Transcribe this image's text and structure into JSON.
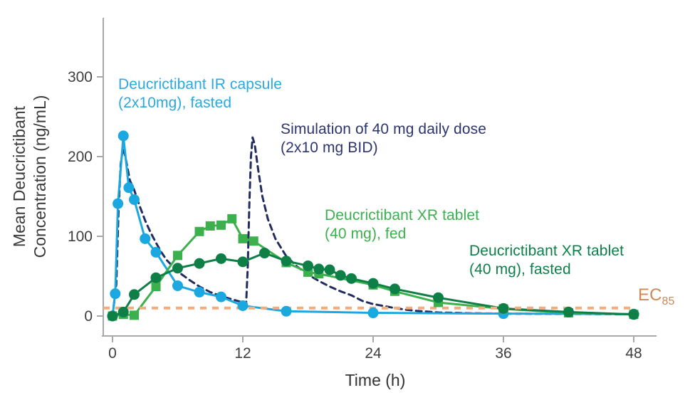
{
  "chart_data": {
    "type": "line",
    "title": "",
    "xlabel": "Time (h)",
    "ylabel_line1": "Mean Deucrictibant",
    "ylabel_line2": "Concentration (ng/mL)",
    "xlim": [
      0,
      48
    ],
    "ylim": [
      0,
      375
    ],
    "x_ticks": [
      0,
      12,
      24,
      36,
      48
    ],
    "y_ticks": [
      0,
      100,
      200,
      300
    ],
    "grid": false,
    "legend_position": "inline-annotations",
    "axis_color": "#a8a8a8",
    "tick_label_color": "#3f3f3f",
    "reference_line": {
      "name": "EC85 threshold",
      "label_base": "EC",
      "label_sub": "85",
      "value": 10,
      "color": "#f3ac7e",
      "style": "dashed"
    },
    "series": [
      {
        "id": "simulation",
        "name": "Simulation of 40 mg daily dose (2x10 mg BID)",
        "color": "#222c5e",
        "line": "dashed",
        "marker": "none",
        "points": [
          [
            0,
            0
          ],
          [
            0.35,
            40
          ],
          [
            0.55,
            130
          ],
          [
            0.75,
            190
          ],
          [
            0.95,
            210
          ],
          [
            1.15,
            202
          ],
          [
            1.35,
            188
          ],
          [
            1.6,
            170
          ],
          [
            2,
            158
          ],
          [
            2.5,
            138
          ],
          [
            3,
            120
          ],
          [
            3.5,
            105
          ],
          [
            4,
            92
          ],
          [
            4.5,
            80
          ],
          [
            5,
            70
          ],
          [
            6,
            56
          ],
          [
            7,
            46
          ],
          [
            8,
            37
          ],
          [
            9,
            30
          ],
          [
            10,
            25
          ],
          [
            11,
            21
          ],
          [
            12,
            17
          ],
          [
            12.3,
            14
          ],
          [
            12.45,
            60
          ],
          [
            12.6,
            140
          ],
          [
            12.75,
            200
          ],
          [
            12.9,
            224
          ],
          [
            13.1,
            215
          ],
          [
            13.4,
            185
          ],
          [
            13.8,
            150
          ],
          [
            14.3,
            122
          ],
          [
            15,
            97
          ],
          [
            16,
            75
          ],
          [
            17,
            62
          ],
          [
            18,
            52
          ],
          [
            19,
            44
          ],
          [
            20,
            37
          ],
          [
            21,
            31
          ],
          [
            22,
            26
          ],
          [
            23,
            19
          ],
          [
            24,
            15
          ],
          [
            25,
            12.5
          ],
          [
            26,
            10
          ],
          [
            27,
            8
          ],
          [
            28,
            6.5
          ],
          [
            30,
            4.5
          ],
          [
            33,
            3.5
          ],
          [
            36,
            3
          ],
          [
            42,
            2.6
          ],
          [
            48,
            2.3
          ]
        ]
      },
      {
        "id": "ir_fasted",
        "name": "Deucrictibant IR capsule (2x10mg), fasted",
        "color": "#1ba7e0",
        "line": "solid",
        "marker": "circle",
        "points": [
          [
            0,
            0
          ],
          [
            0.25,
            28
          ],
          [
            0.5,
            141
          ],
          [
            1,
            226
          ],
          [
            1.5,
            161
          ],
          [
            2,
            146
          ],
          [
            3,
            97
          ],
          [
            4,
            80
          ],
          [
            6,
            38
          ],
          [
            8,
            30
          ],
          [
            10,
            24
          ],
          [
            12,
            13
          ],
          [
            16,
            6
          ],
          [
            24,
            4
          ],
          [
            36,
            3
          ],
          [
            48,
            2.5
          ]
        ]
      },
      {
        "id": "xr_fed",
        "name": "Deucrictibant XR tablet (40 mg), fed",
        "color": "#3bb04c",
        "line": "solid",
        "marker": "square",
        "points": [
          [
            0,
            0
          ],
          [
            1,
            2
          ],
          [
            2,
            1
          ],
          [
            4,
            37
          ],
          [
            6,
            76
          ],
          [
            8,
            106
          ],
          [
            9,
            113
          ],
          [
            10,
            114
          ],
          [
            11,
            122
          ],
          [
            12,
            97
          ],
          [
            13,
            94
          ],
          [
            16,
            67
          ],
          [
            18,
            55
          ],
          [
            19,
            53
          ],
          [
            24,
            39
          ],
          [
            26,
            31
          ],
          [
            30,
            17
          ],
          [
            36,
            9
          ],
          [
            42,
            4
          ],
          [
            48,
            2
          ]
        ]
      },
      {
        "id": "xr_fasted",
        "name": "Deucrictibant XR tablet (40 mg), fasted",
        "color": "#0e7f47",
        "line": "solid",
        "marker": "circle",
        "points": [
          [
            0,
            0
          ],
          [
            1,
            5
          ],
          [
            2,
            27
          ],
          [
            4,
            48
          ],
          [
            6,
            60
          ],
          [
            8,
            66
          ],
          [
            10,
            72
          ],
          [
            12,
            68
          ],
          [
            14,
            79
          ],
          [
            16,
            69
          ],
          [
            18,
            63
          ],
          [
            19,
            59
          ],
          [
            20,
            58
          ],
          [
            21,
            51
          ],
          [
            22,
            47
          ],
          [
            24,
            41
          ],
          [
            26,
            34
          ],
          [
            30,
            23
          ],
          [
            36,
            9.5
          ],
          [
            42,
            5
          ],
          [
            48,
            2
          ]
        ]
      }
    ]
  },
  "annotations": {
    "ir": {
      "line1": "Deucrictibant IR capsule",
      "line2": "(2x10mg), fasted",
      "color": "#2aa9e0"
    },
    "sim": {
      "line1": "Simulation of 40 mg daily dose",
      "line2": "(2x10 mg BID)",
      "color": "#2d3570"
    },
    "fed": {
      "line1": "Deucrictibant XR tablet",
      "line2": "(40 mg), fed",
      "color": "#3bb04c"
    },
    "fast": {
      "line1": "Deucrictibant XR tablet",
      "line2": "(40 mg), fasted",
      "color": "#0c7f4a"
    },
    "ec85": {
      "base": "EC",
      "sub": "85",
      "color": "#cd8857"
    }
  }
}
